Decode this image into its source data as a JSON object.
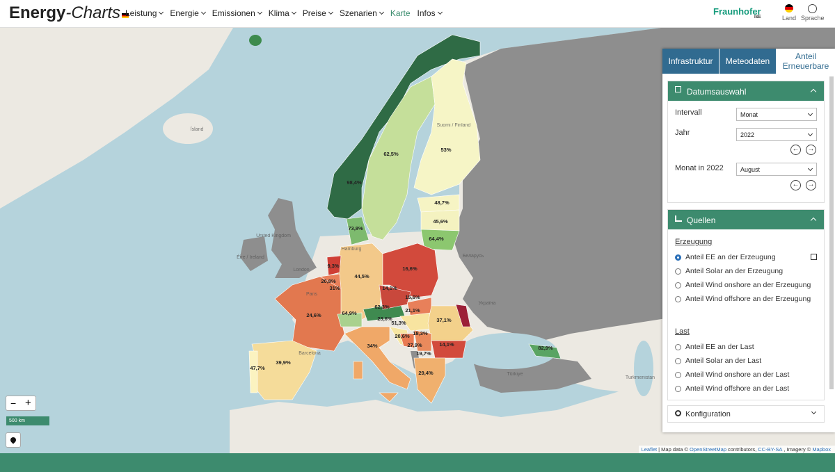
{
  "header": {
    "logo": {
      "part1": "Energy",
      "part2": "-Charts"
    },
    "nav": [
      "Leistung",
      "Energie",
      "Emissionen",
      "Klima",
      "Preise",
      "Szenarien",
      "Karte",
      "Infos"
    ],
    "brand": {
      "name": "Fraunhofer",
      "sub": "ISE"
    },
    "land": "Land",
    "sprache": "Sprache"
  },
  "panel": {
    "tabs": [
      "Infrastruktur",
      "Meteodaten",
      "Anteil Erneuerbare"
    ],
    "date_section": {
      "title": "Datumsauswahl",
      "fields": [
        {
          "label": "Intervall",
          "value": "Monat"
        },
        {
          "label": "Jahr",
          "value": "2022"
        },
        {
          "label": "Monat in 2022",
          "value": "August"
        }
      ]
    },
    "sources_section": {
      "title": "Quellen",
      "groups": [
        {
          "title": "Erzeugung",
          "options": [
            "Anteil EE an der Erzeugung",
            "Anteil Solar an der Erzeugung",
            "Anteil Wind onshore an der Erzeugung",
            "Anteil Wind offshore an der Erzeugung"
          ]
        },
        {
          "title": "Last",
          "options": [
            "Anteil EE an der Last",
            "Anteil Solar an der Last",
            "Anteil Wind onshore an der Last",
            "Anteil Wind offshore an der Last"
          ]
        }
      ]
    },
    "config_section": {
      "title": "Konfiguration"
    }
  },
  "map": {
    "values": [
      "98,4%",
      "62,5%",
      "53%",
      "48,7%",
      "45,6%",
      "64,4%",
      "73,8%",
      "16,6%",
      "44,5%",
      "9,3%",
      "20,8%",
      "31%",
      "14,1%",
      "15,6%",
      "21,1%",
      "62,3%",
      "64,9%",
      "24,6%",
      "37,1%",
      "51,3%",
      "23,6%",
      "20,6%",
      "18,3%",
      "27,9%",
      "19,7%",
      "14,1%",
      "34%",
      "29,4%",
      "47,7%",
      "39,9%",
      "82,9%"
    ],
    "places": [
      "Ísland",
      "United Kingdom",
      "London",
      "Éire / Ireland",
      "Paris",
      "Barcelona",
      "Hamburg",
      "Беларусь",
      "Україна",
      "Türkiye",
      "Turkmenistan",
      "Suomi / Finland"
    ],
    "zoom_out": "−",
    "zoom_in": "+",
    "scale": "500 km",
    "attribution": [
      "Leaflet",
      "| Map data ©",
      "OpenStreetMap",
      "contributors,",
      "CC-BY-SA",
      ", Imagery ©",
      "Mapbox"
    ]
  }
}
